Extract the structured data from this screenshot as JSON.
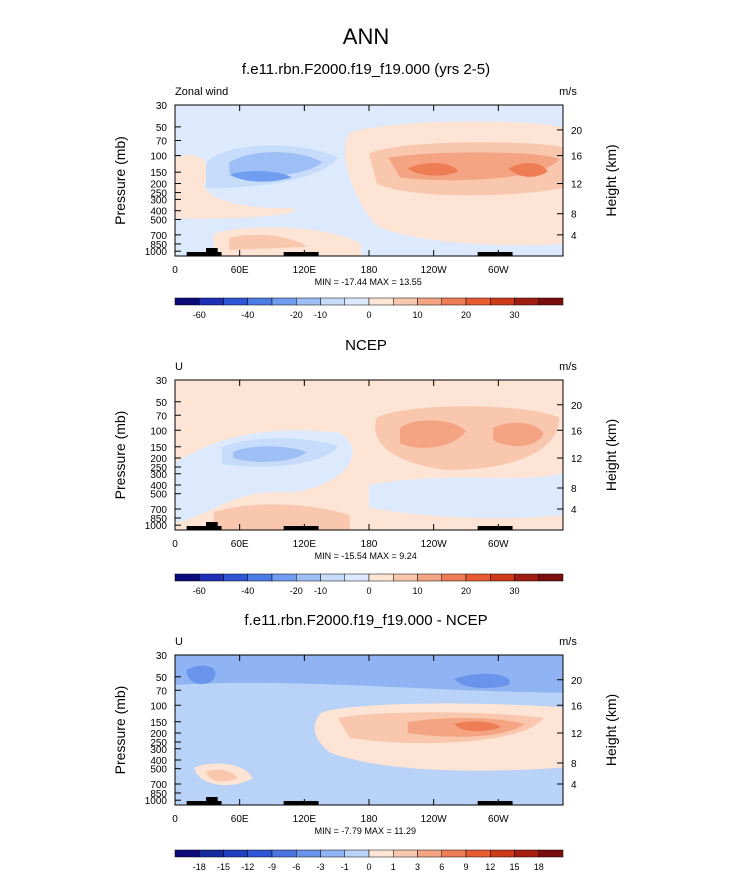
{
  "chart_data": {
    "type": "heatmap",
    "title": "ANN",
    "common": {
      "ylabel_left": "Pressure (mb)",
      "ylabel_right": "Height (km)",
      "pressure_ticks": [
        "30",
        "50",
        "70",
        "100",
        "150",
        "200",
        "250",
        "300",
        "400",
        "500",
        "700",
        "850",
        "1000"
      ],
      "pressure_values": [
        30,
        50,
        70,
        100,
        150,
        200,
        250,
        300,
        400,
        500,
        700,
        850,
        1000
      ],
      "height_ticks": [
        "20",
        "16",
        "12",
        "8",
        "4"
      ],
      "height_values": [
        20,
        16,
        12,
        8,
        4
      ],
      "lon_ticks": [
        "0",
        "60E",
        "120E",
        "180",
        "120W",
        "60W"
      ],
      "lon_values": [
        0,
        60,
        120,
        180,
        240,
        300
      ],
      "xlim": [
        0,
        360
      ],
      "ylim": [
        1000,
        30
      ]
    },
    "panels": [
      {
        "title": "f.e11.rbn.F2000.f19_f19.000 (yrs 2-5)",
        "left_label": "Zonal wind",
        "units": "m/s",
        "stats": "MIN = -17.44  MAX =  13.55",
        "colorbar_levels": [
          "-60",
          "-40",
          "-20",
          "-10",
          "0",
          "10",
          "20",
          "30"
        ],
        "colorbar_colors": [
          "#0a0a7a",
          "#1f2fb8",
          "#2e56d6",
          "#4a7ce6",
          "#6f9ef0",
          "#9dbff6",
          "#c7dcfb",
          "#ddeafd",
          "#fde4d4",
          "#f9c7ad",
          "#f4a483",
          "#ee7c54",
          "#e85a30",
          "#cf3a1a",
          "#9e1d10",
          "#7a0d0d"
        ]
      },
      {
        "title": "NCEP",
        "left_label": "U",
        "units": "m/s",
        "stats": "MIN = -15.54  MAX =  9.24",
        "colorbar_levels": [
          "-60",
          "-40",
          "-20",
          "-10",
          "0",
          "10",
          "20",
          "30"
        ],
        "colorbar_colors": [
          "#0a0a7a",
          "#1f2fb8",
          "#2e56d6",
          "#4a7ce6",
          "#6f9ef0",
          "#9dbff6",
          "#c7dcfb",
          "#ddeafd",
          "#fde4d4",
          "#f9c7ad",
          "#f4a483",
          "#ee7c54",
          "#e85a30",
          "#cf3a1a",
          "#9e1d10",
          "#7a0d0d"
        ]
      },
      {
        "title": "f.e11.rbn.F2000.f19_f19.000 - NCEP",
        "left_label": "U",
        "units": "m/s",
        "stats": "MIN = -7.79  MAX = 11.29",
        "colorbar_levels": [
          "-18",
          "-15",
          "-12",
          "-9",
          "-6",
          "-3",
          "-1",
          "0",
          "1",
          "3",
          "6",
          "9",
          "12",
          "15",
          "18"
        ],
        "colorbar_colors": [
          "#0a0a7a",
          "#142a9e",
          "#1f3fc0",
          "#2e56d6",
          "#4a74e2",
          "#6a94ec",
          "#8fb3f3",
          "#b9d2f8",
          "#fde4d4",
          "#f9c7ad",
          "#f4a483",
          "#ee7c54",
          "#e85a30",
          "#cf3a1a",
          "#a81f12",
          "#7a0d0d"
        ]
      }
    ]
  }
}
